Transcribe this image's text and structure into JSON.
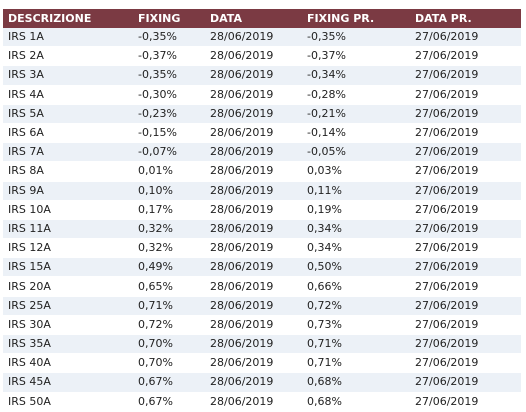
{
  "table": {
    "columns": [
      "DESCRIZIONE",
      "FIXING",
      "DATA",
      "FIXING PR.",
      "DATA PR."
    ],
    "rows": [
      [
        "IRS 1A",
        "-0,35%",
        "28/06/2019",
        "-0,35%",
        "27/06/2019"
      ],
      [
        "IRS 2A",
        "-0,37%",
        "28/06/2019",
        "-0,37%",
        "27/06/2019"
      ],
      [
        "IRS 3A",
        "-0,35%",
        "28/06/2019",
        "-0,34%",
        "27/06/2019"
      ],
      [
        "IRS 4A",
        "-0,30%",
        "28/06/2019",
        "-0,28%",
        "27/06/2019"
      ],
      [
        "IRS 5A",
        "-0,23%",
        "28/06/2019",
        "-0,21%",
        "27/06/2019"
      ],
      [
        "IRS 6A",
        "-0,15%",
        "28/06/2019",
        "-0,14%",
        "27/06/2019"
      ],
      [
        "IRS 7A",
        "-0,07%",
        "28/06/2019",
        "-0,05%",
        "27/06/2019"
      ],
      [
        "IRS 8A",
        "0,01%",
        "28/06/2019",
        "0,03%",
        "27/06/2019"
      ],
      [
        "IRS 9A",
        "0,10%",
        "28/06/2019",
        "0,11%",
        "27/06/2019"
      ],
      [
        "IRS 10A",
        "0,17%",
        "28/06/2019",
        "0,19%",
        "27/06/2019"
      ],
      [
        "IRS 11A",
        "0,32%",
        "28/06/2019",
        "0,34%",
        "27/06/2019"
      ],
      [
        "IRS 12A",
        "0,32%",
        "28/06/2019",
        "0,34%",
        "27/06/2019"
      ],
      [
        "IRS 15A",
        "0,49%",
        "28/06/2019",
        "0,50%",
        "27/06/2019"
      ],
      [
        "IRS 20A",
        "0,65%",
        "28/06/2019",
        "0,66%",
        "27/06/2019"
      ],
      [
        "IRS 25A",
        "0,71%",
        "28/06/2019",
        "0,72%",
        "27/06/2019"
      ],
      [
        "IRS 30A",
        "0,72%",
        "28/06/2019",
        "0,73%",
        "27/06/2019"
      ],
      [
        "IRS 35A",
        "0,70%",
        "28/06/2019",
        "0,71%",
        "27/06/2019"
      ],
      [
        "IRS 40A",
        "0,70%",
        "28/06/2019",
        "0,71%",
        "27/06/2019"
      ],
      [
        "IRS 45A",
        "0,67%",
        "28/06/2019",
        "0,68%",
        "27/06/2019"
      ],
      [
        "IRS 50A",
        "0,67%",
        "28/06/2019",
        "0,68%",
        "27/06/2019"
      ]
    ]
  },
  "colors": {
    "header_bg": "#7b3a43",
    "header_text": "#ffffff",
    "row_alt_bg": "#ecf1f7"
  }
}
